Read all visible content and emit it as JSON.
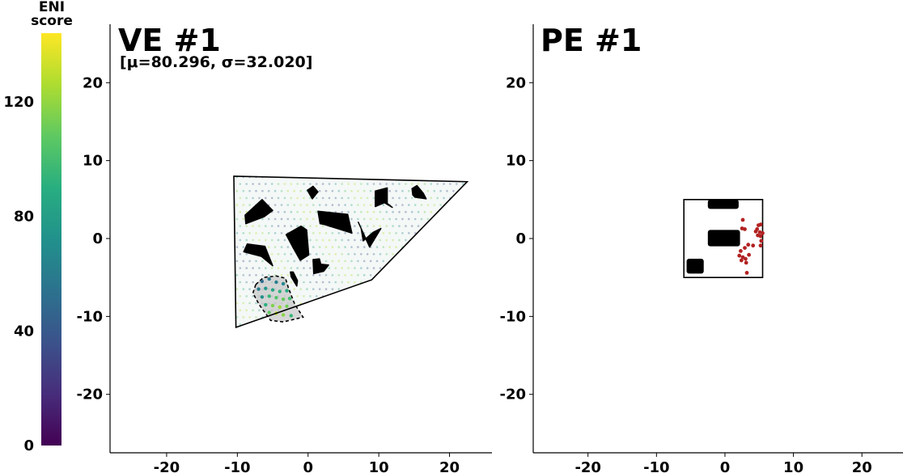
{
  "colorbar": {
    "title_line1": "ENI",
    "title_line2": "score",
    "ticks": [
      0,
      40,
      80,
      120
    ],
    "range": [
      0,
      144
    ],
    "colormap": "viridis"
  },
  "chart_data": [
    {
      "type": "scatter",
      "title": "VE #1",
      "subtitle": "[μ=80.296, σ=32.020]",
      "xlim": [
        -28,
        26
      ],
      "ylim": [
        -27.5,
        27.5
      ],
      "xticks": [
        -20,
        -10,
        0,
        10,
        20
      ],
      "yticks": [
        -20,
        -10,
        0,
        10,
        20
      ],
      "grid": false,
      "environment_boundary": [
        [
          -10.5,
          8
        ],
        [
          22.5,
          7.3
        ],
        [
          9,
          -5.3
        ],
        [
          -10.2,
          -11.4
        ]
      ],
      "obstacles": [
        [
          [
            -8.9,
            3
          ],
          [
            -6.5,
            5
          ],
          [
            -5,
            3.6
          ],
          [
            -6.2,
            2.8
          ],
          [
            -8.8,
            1.9
          ]
        ],
        [
          [
            -0.1,
            6.2
          ],
          [
            0.7,
            6.7
          ],
          [
            1.4,
            6
          ],
          [
            0.6,
            5.1
          ]
        ],
        [
          [
            9.5,
            6.1
          ],
          [
            11.2,
            6.5
          ],
          [
            11.2,
            4.5
          ],
          [
            11.9,
            4
          ],
          [
            10.8,
            4.6
          ],
          [
            9.5,
            4.1
          ]
        ],
        [
          [
            14.7,
            6.4
          ],
          [
            15.4,
            6.8
          ],
          [
            16.3,
            5.8
          ],
          [
            16.7,
            5.1
          ],
          [
            15.1,
            5.3
          ],
          [
            14.8,
            5.6
          ]
        ],
        [
          [
            1.4,
            3.5
          ],
          [
            5.6,
            3.1
          ],
          [
            6.2,
            0.7
          ],
          [
            2.3,
            1.8
          ],
          [
            1.7,
            1.9
          ]
        ],
        [
          [
            7.1,
            2.1
          ],
          [
            8.7,
            -1.1
          ],
          [
            10.3,
            1.3
          ],
          [
            9.2,
            0.8
          ],
          [
            7.8,
            -0.3
          ],
          [
            7.5,
            1.3
          ]
        ],
        [
          [
            -3.1,
            0.5
          ],
          [
            -1,
            1.6
          ],
          [
            -0.2,
            1.1
          ],
          [
            0.1,
            -2.1
          ],
          [
            -1.1,
            -2.8
          ],
          [
            -2.1,
            -1.2
          ]
        ],
        [
          [
            -9.1,
            -1.7
          ],
          [
            -8.6,
            -0.7
          ],
          [
            -6.1,
            -1
          ],
          [
            -5,
            -3.5
          ],
          [
            -6.6,
            -2.3
          ]
        ],
        [
          [
            0.7,
            -2.7
          ],
          [
            1.6,
            -2.6
          ],
          [
            1.8,
            -3.3
          ],
          [
            2.9,
            -3.4
          ],
          [
            2.2,
            -4.2
          ],
          [
            0.8,
            -4.5
          ]
        ],
        [
          [
            -2.5,
            -4.3
          ],
          [
            -2.4,
            -4.9
          ],
          [
            -1.6,
            -6.1
          ],
          [
            -1.5,
            -5.4
          ],
          [
            -2.1,
            -4.3
          ]
        ]
      ],
      "highlight_region": [
        [
          -7.4,
          -5.9
        ],
        [
          -6.3,
          -5
        ],
        [
          -4.5,
          -4.8
        ],
        [
          -3.2,
          -5.1
        ],
        [
          -2.8,
          -6.3
        ],
        [
          -1.9,
          -8.4
        ],
        [
          -0.7,
          -10.1
        ],
        [
          -3.5,
          -10.7
        ],
        [
          -5.3,
          -10.5
        ],
        [
          -6.9,
          -8.5
        ],
        [
          -7.8,
          -7
        ]
      ],
      "series": [
        {
          "points": [
            [
              -6.5,
              -5.5,
              52
            ],
            [
              -5.5,
              -5.2,
              58
            ],
            [
              -4.5,
              -5.6,
              62
            ],
            [
              -3.5,
              -5.8,
              66
            ],
            [
              -7.0,
              -6.5,
              60
            ],
            [
              -6.0,
              -6.4,
              75
            ],
            [
              -5.0,
              -6.6,
              84
            ],
            [
              -4.0,
              -6.8,
              92
            ],
            [
              -3.0,
              -6.7,
              88
            ],
            [
              -6.5,
              -7.5,
              70
            ],
            [
              -5.5,
              -7.4,
              95
            ],
            [
              -4.5,
              -7.6,
              104
            ],
            [
              -3.5,
              -7.8,
              110
            ],
            [
              -2.6,
              -7.7,
              100
            ],
            [
              -6.0,
              -8.5,
              90
            ],
            [
              -5.0,
              -8.6,
              115
            ],
            [
              -4.0,
              -8.8,
              122
            ],
            [
              -3.0,
              -8.7,
              112
            ],
            [
              -5.5,
              -9.5,
              108
            ],
            [
              -4.5,
              -9.6,
              128
            ],
            [
              -3.5,
              -9.8,
              118
            ],
            [
              -2.4,
              -9.9,
              95
            ]
          ]
        }
      ]
    },
    {
      "type": "scatter",
      "title": "PE #1",
      "xlim": [
        -28,
        26
      ],
      "ylim": [
        -27.5,
        27.5
      ],
      "xticks": [
        -20,
        -10,
        0,
        10,
        20
      ],
      "yticks": [
        -20,
        -10,
        0,
        10,
        20
      ],
      "grid": false,
      "environment_boundary": [
        [
          -6,
          5
        ],
        [
          5.5,
          5
        ],
        [
          5.5,
          -5
        ],
        [
          -6,
          -5
        ]
      ],
      "obstacles": [
        [
          [
            -2.5,
            5
          ],
          [
            2,
            5
          ],
          [
            2,
            3.8
          ],
          [
            -2.5,
            3.8
          ]
        ],
        [
          [
            -2.5,
            1.1
          ],
          [
            2.2,
            1.1
          ],
          [
            2.2,
            -1
          ],
          [
            -2.5,
            -1
          ]
        ],
        [
          [
            -5.6,
            -2.6
          ],
          [
            -3.1,
            -2.6
          ],
          [
            -3.1,
            -4.5
          ],
          [
            -5.6,
            -4.5
          ]
        ]
      ],
      "point_color": "#b22222",
      "series": [
        {
          "points": [
            [
              2.6,
              2.4
            ],
            [
              2.5,
              1.3
            ],
            [
              2.9,
              1.2
            ],
            [
              4.9,
              1.7
            ],
            [
              5.2,
              1.8
            ],
            [
              4.7,
              1.2
            ],
            [
              4.5,
              0.9
            ],
            [
              5.1,
              0.8
            ],
            [
              5.5,
              0.7
            ],
            [
              4.8,
              0.4
            ],
            [
              5.2,
              0.3
            ],
            [
              5.3,
              -0.3
            ],
            [
              5.2,
              -0.9
            ],
            [
              3.4,
              -0.8
            ],
            [
              4.1,
              -0.9
            ],
            [
              2.9,
              -1.2
            ],
            [
              2.3,
              -1.6
            ],
            [
              2.1,
              -2.2
            ],
            [
              2.6,
              -2.4
            ],
            [
              3.5,
              -2.1
            ],
            [
              3.0,
              -2.6
            ],
            [
              2.4,
              -2.8
            ],
            [
              3.1,
              -3.1
            ],
            [
              3.2,
              -4.4
            ]
          ]
        }
      ]
    }
  ]
}
